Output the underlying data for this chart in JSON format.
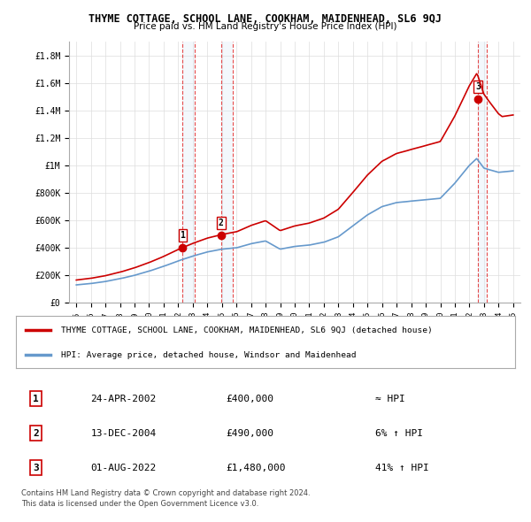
{
  "title": "THYME COTTAGE, SCHOOL LANE, COOKHAM, MAIDENHEAD, SL6 9QJ",
  "subtitle": "Price paid vs. HM Land Registry's House Price Index (HPI)",
  "ylim": [
    0,
    1900000
  ],
  "yticks": [
    0,
    200000,
    400000,
    600000,
    800000,
    1000000,
    1200000,
    1400000,
    1600000,
    1800000
  ],
  "ytick_labels": [
    "£0",
    "£200K",
    "£400K",
    "£600K",
    "£800K",
    "£1M",
    "£1.2M",
    "£1.4M",
    "£1.6M",
    "£1.8M"
  ],
  "sales": [
    {
      "date": 2002.31,
      "price": 400000,
      "label": "1"
    },
    {
      "date": 2004.95,
      "price": 490000,
      "label": "2"
    },
    {
      "date": 2022.58,
      "price": 1480000,
      "label": "3"
    }
  ],
  "sale_colors": [
    "#cc0000",
    "#cc0000",
    "#cc0000"
  ],
  "vline_color": "#dd0000",
  "highlight_colors": [
    "#d9e8f7",
    "#d9e8f7",
    "#d9e8f7"
  ],
  "property_line_color": "#cc0000",
  "hpi_line_color": "#6699cc",
  "legend_property": "THYME COTTAGE, SCHOOL LANE, COOKHAM, MAIDENHEAD, SL6 9QJ (detached house)",
  "legend_hpi": "HPI: Average price, detached house, Windsor and Maidenhead",
  "table_rows": [
    [
      "1",
      "24-APR-2002",
      "£400,000",
      "≈ HPI"
    ],
    [
      "2",
      "13-DEC-2004",
      "£490,000",
      "6% ↑ HPI"
    ],
    [
      "3",
      "01-AUG-2022",
      "£1,480,000",
      "41% ↑ HPI"
    ]
  ],
  "footnote1": "Contains HM Land Registry data © Crown copyright and database right 2024.",
  "footnote2": "This data is licensed under the Open Government Licence v3.0.",
  "bg_color": "#ffffff",
  "grid_color": "#dddddd"
}
